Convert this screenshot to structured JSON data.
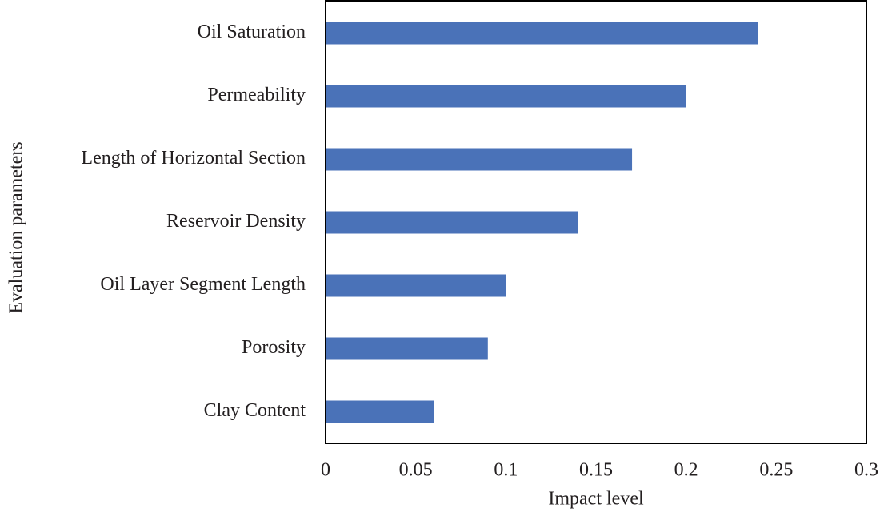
{
  "chart_data": {
    "type": "bar",
    "orientation": "horizontal",
    "x_label": "Impact level",
    "y_label": "Evaluation parameters",
    "categories": [
      "Oil Saturation",
      "Permeability",
      "Length of Horizontal Section",
      "Reservoir Density",
      "Oil Layer Segment Length",
      "Porosity",
      "Clay Content"
    ],
    "values": [
      0.24,
      0.2,
      0.17,
      0.14,
      0.1,
      0.09,
      0.06
    ],
    "color": "#4a72b8",
    "xlim": [
      0,
      0.3
    ],
    "xticks": [
      0,
      0.05,
      0.1,
      0.15,
      0.2,
      0.25,
      0.3
    ],
    "grid": false
  }
}
